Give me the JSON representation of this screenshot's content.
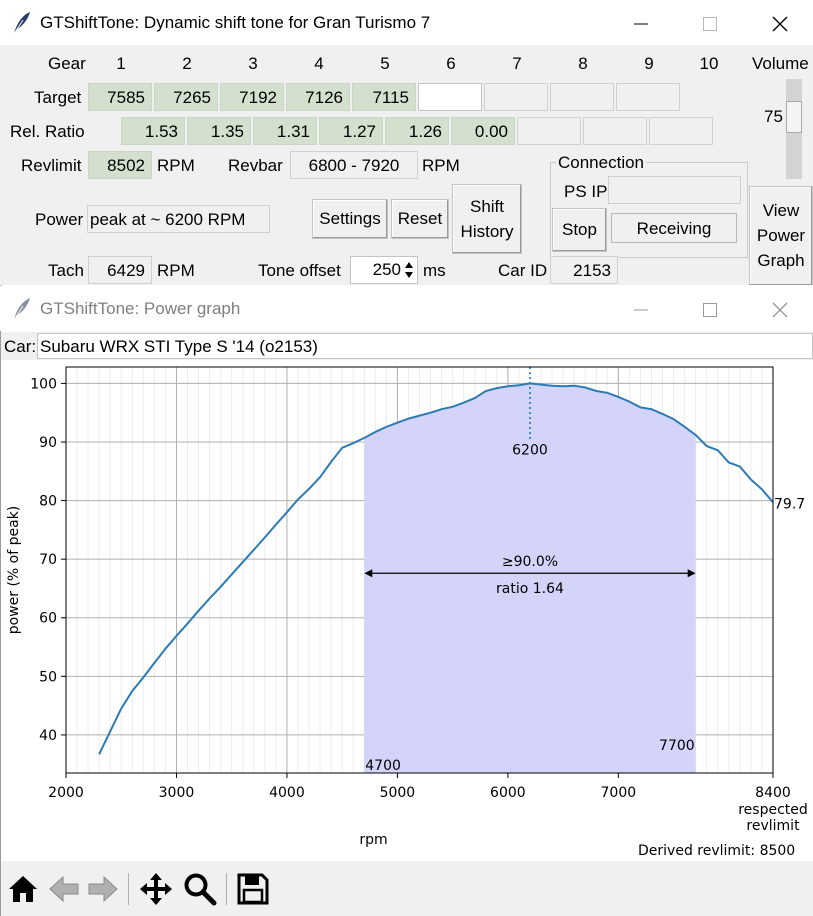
{
  "main_window": {
    "title": "GTShiftTone: Dynamic shift tone for Gran Turismo 7",
    "gear_label": "Gear",
    "gears": [
      "1",
      "2",
      "3",
      "4",
      "5",
      "6",
      "7",
      "8",
      "9",
      "10"
    ],
    "volume_label": "Volume",
    "volume_value": "75",
    "volume_level": 0.75,
    "target_label": "Target",
    "targets": [
      "7585",
      "7265",
      "7192",
      "7126",
      "7115",
      "",
      "",
      "",
      "",
      ""
    ],
    "rel_ratio_label": "Rel. Ratio",
    "rel_ratios": [
      "1.53",
      "1.35",
      "1.31",
      "1.27",
      "1.26",
      "0.00",
      "",
      "",
      ""
    ],
    "revlimit_label": "Revlimit",
    "revlimit_value": "8502",
    "revlimit_unit": "RPM",
    "revbar_label": "Revbar",
    "revbar_value": "6800 -  7920",
    "revbar_unit": "RPM",
    "connection_label": "Connection",
    "ps_ip_label": "PS IP",
    "ps_ip_value": "",
    "power_label": "Power",
    "power_value": "peak at ~ 6200 RPM",
    "settings_button": "Settings",
    "reset_button": "Reset",
    "shift_history_button_line1": "Shift",
    "shift_history_button_line2": "History",
    "stop_button": "Stop",
    "receiving_status": "Receiving",
    "view_power_graph_line1": "View",
    "view_power_graph_line2": "Power",
    "view_power_graph_line3": "Graph",
    "tach_label": "Tach",
    "tach_value": "6429",
    "tach_unit": "RPM",
    "tone_offset_label": "Tone offset",
    "tone_offset_value": "250",
    "tone_offset_unit": "ms",
    "car_id_label": "Car ID",
    "car_id_value": "2153"
  },
  "graph_window": {
    "title": "GTShiftTone: Power graph",
    "car_label": "Car:",
    "car_value": "Subaru WRX STI Type S '14 (o2153)",
    "derived_revlimit": "Derived revlimit: 8500",
    "toolbar": [
      "home-icon",
      "back-icon",
      "forward-icon",
      "pan-icon",
      "zoom-icon",
      "save-icon"
    ]
  },
  "chart_data": {
    "type": "line",
    "xlabel": "rpm",
    "ylabel": "power (% of peak)",
    "xlim": [
      2000,
      8400
    ],
    "ylim": [
      33.5,
      102.8
    ],
    "xticks": [
      2000,
      3000,
      4000,
      5000,
      6000,
      7000,
      8400
    ],
    "xtick_labels": [
      "2000",
      "3000",
      "4000",
      "5000",
      "6000",
      "7000",
      "8400"
    ],
    "x_last_tick_note_line1": "respected",
    "x_last_tick_note_line2": "revlimit",
    "yticks": [
      40,
      50,
      60,
      70,
      80,
      90,
      100
    ],
    "grid": true,
    "line_color": "#2c7bb4",
    "fill_color": "#d4d4fb",
    "fill_range": [
      4700,
      7700
    ],
    "fill_start_label": "4700",
    "fill_end_label": "7700",
    "band_label": "≥90.0%",
    "ratio_label": "ratio 1.64",
    "peak_x": 6200,
    "peak_label": "6200",
    "end_label": "79.7",
    "x": [
      2300,
      2400,
      2500,
      2600,
      2700,
      2800,
      2900,
      3000,
      3100,
      3200,
      3300,
      3400,
      3500,
      3600,
      3700,
      3800,
      3900,
      4000,
      4100,
      4200,
      4300,
      4400,
      4500,
      4600,
      4700,
      4800,
      4900,
      5000,
      5100,
      5200,
      5300,
      5400,
      5500,
      5600,
      5700,
      5800,
      5900,
      6000,
      6100,
      6200,
      6300,
      6400,
      6500,
      6600,
      6700,
      6800,
      6900,
      7000,
      7100,
      7200,
      7300,
      7400,
      7500,
      7600,
      7700,
      7800,
      7900,
      8000,
      8100,
      8200,
      8300,
      8400
    ],
    "y": [
      36.7,
      40.6,
      44.5,
      47.5,
      49.8,
      52.3,
      54.7,
      56.9,
      59.0,
      61.2,
      63.3,
      65.3,
      67.4,
      69.5,
      71.6,
      73.7,
      75.9,
      78.0,
      80.2,
      82.0,
      84.0,
      86.6,
      89.0,
      89.8,
      90.7,
      91.7,
      92.6,
      93.3,
      94.0,
      94.5,
      95.0,
      95.6,
      96.0,
      96.7,
      97.5,
      98.7,
      99.2,
      99.5,
      99.7,
      100.0,
      99.8,
      99.6,
      99.5,
      99.6,
      99.3,
      98.7,
      98.4,
      97.7,
      96.9,
      95.9,
      95.6,
      94.8,
      93.9,
      92.6,
      91.2,
      89.3,
      88.6,
      86.5,
      85.8,
      83.6,
      81.9,
      79.7
    ]
  }
}
